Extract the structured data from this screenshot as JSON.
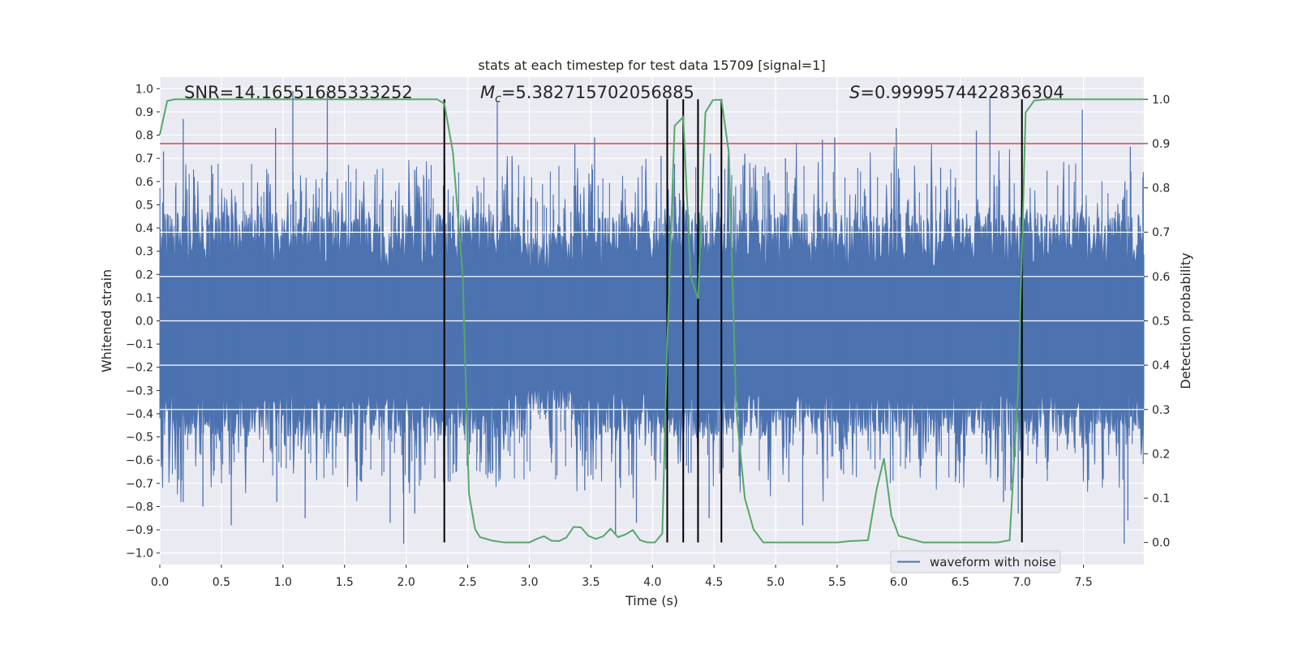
{
  "chart_data": {
    "type": "line",
    "title": "stats at each timestep for test data 15709 [signal=1]",
    "xlabel": "Time (s)",
    "ylabel": "Whitened strain",
    "ylabel_right": "Detection probability",
    "xlim": [
      0,
      7.99
    ],
    "ylim": [
      -1.05,
      1.05
    ],
    "ylim_right": [
      -0.05,
      1.05
    ],
    "x_ticks": [
      0.0,
      0.5,
      1.0,
      1.5,
      2.0,
      2.5,
      3.0,
      3.5,
      4.0,
      4.5,
      5.0,
      5.5,
      6.0,
      6.5,
      7.0,
      7.5
    ],
    "x_tick_labels": [
      "0.0",
      "0.5",
      "1.0",
      "1.5",
      "2.0",
      "2.5",
      "3.0",
      "3.5",
      "4.0",
      "4.5",
      "5.0",
      "5.5",
      "6.0",
      "6.5",
      "7.0",
      "7.5"
    ],
    "y_ticks": [
      -1.0,
      -0.9,
      -0.8,
      -0.7,
      -0.6,
      -0.5,
      -0.4,
      -0.3,
      -0.2,
      -0.1,
      0.0,
      0.1,
      0.2,
      0.3,
      0.4,
      0.5,
      0.6,
      0.7,
      0.8,
      0.9,
      1.0
    ],
    "y_tick_labels": [
      "−1.0",
      "−0.9",
      "−0.8",
      "−0.7",
      "−0.6",
      "−0.5",
      "−0.4",
      "−0.3",
      "−0.2",
      "−0.1",
      "0.0",
      "0.1",
      "0.2",
      "0.3",
      "0.4",
      "0.5",
      "0.6",
      "0.7",
      "0.8",
      "0.9",
      "1.0"
    ],
    "y2_ticks": [
      0.0,
      0.1,
      0.2,
      0.3,
      0.4,
      0.5,
      0.6,
      0.7,
      0.8,
      0.9,
      1.0
    ],
    "y2_tick_labels": [
      "0.0",
      "0.1",
      "0.2",
      "0.3",
      "0.4",
      "0.5",
      "0.6",
      "0.7",
      "0.8",
      "0.9",
      "1.0"
    ],
    "annotations": {
      "snr": "SNR=14.16551685333252",
      "mc_symbol": "M",
      "mc_sub": "c",
      "mc_value": "=5.382715702056885",
      "s_symbol": "S",
      "s_value": "=0.9999574422836304"
    },
    "threshold": {
      "value": 0.9,
      "axis": "right",
      "color": "#c44e52"
    },
    "vertical_lines": {
      "x": [
        2.31,
        4.12,
        4.25,
        4.37,
        4.56,
        7.0
      ],
      "y_range_right": [
        0.0,
        1.0
      ],
      "color": "#000000"
    },
    "waveform": {
      "name": "waveform with noise",
      "color": "#4c72b0",
      "description_bounds": {
        "typical_upper": 0.45,
        "typical_lower": -0.35
      },
      "spikes": [
        [
          0.03,
          0.73
        ],
        [
          0.06,
          0.46
        ],
        [
          0.19,
          0.87
        ],
        [
          0.28,
          0.62
        ],
        [
          0.42,
          0.67
        ],
        [
          0.94,
          0.83
        ],
        [
          1.08,
          0.99
        ],
        [
          1.36,
          0.99
        ],
        [
          1.88,
          0.52
        ],
        [
          2.07,
          0.65
        ],
        [
          2.74,
          0.94
        ],
        [
          2.86,
          0.71
        ],
        [
          3.37,
          0.76
        ],
        [
          3.53,
          0.79
        ],
        [
          4.07,
          0.71
        ],
        [
          4.47,
          0.72
        ],
        [
          4.75,
          0.72
        ],
        [
          5.08,
          0.7
        ],
        [
          5.38,
          0.78
        ],
        [
          5.48,
          0.79
        ],
        [
          5.98,
          0.83
        ],
        [
          6.34,
          0.66
        ],
        [
          6.63,
          0.82
        ],
        [
          6.74,
          0.96
        ],
        [
          7.49,
          0.91
        ],
        [
          7.88,
          0.75
        ],
        [
          0.19,
          -0.78
        ],
        [
          0.35,
          -0.8
        ],
        [
          0.58,
          -0.88
        ],
        [
          0.95,
          -0.78
        ],
        [
          1.18,
          -0.85
        ],
        [
          1.87,
          -0.87
        ],
        [
          1.98,
          -0.96
        ],
        [
          2.07,
          -0.83
        ],
        [
          3.7,
          -0.92
        ],
        [
          3.87,
          -0.87
        ],
        [
          5.22,
          -0.88
        ],
        [
          6.85,
          -0.78
        ],
        [
          6.97,
          -0.83
        ],
        [
          7.83,
          -0.96
        ],
        [
          7.86,
          -0.86
        ],
        [
          4.46,
          -0.85
        ],
        [
          6.91,
          -0.73
        ],
        [
          3.45,
          -0.73
        ]
      ]
    },
    "series": [
      {
        "name": "detection probability",
        "axis": "right",
        "color": "#55a868",
        "x": [
          0.0,
          0.06,
          0.12,
          0.5,
          1.0,
          1.5,
          2.0,
          2.15,
          2.25,
          2.31,
          2.38,
          2.46,
          2.51,
          2.56,
          2.6,
          2.7,
          2.8,
          3.0,
          3.06,
          3.12,
          3.18,
          3.24,
          3.3,
          3.36,
          3.42,
          3.48,
          3.54,
          3.6,
          3.66,
          3.72,
          3.78,
          3.84,
          3.9,
          3.96,
          4.02,
          4.08,
          4.12,
          4.18,
          4.25,
          4.31,
          4.37,
          4.43,
          4.49,
          4.56,
          4.62,
          4.68,
          4.75,
          4.82,
          4.9,
          5.0,
          5.5,
          5.6,
          5.75,
          5.82,
          5.88,
          5.94,
          6.0,
          6.2,
          6.5,
          6.8,
          6.9,
          6.97,
          7.03,
          7.1,
          7.2,
          7.5,
          7.99
        ],
        "values": [
          0.92,
          0.996,
          1.0,
          1.0,
          1.0,
          1.0,
          1.0,
          1.0,
          1.0,
          0.99,
          0.88,
          0.6,
          0.11,
          0.03,
          0.012,
          0.004,
          0.0,
          0.0,
          0.008,
          0.014,
          0.004,
          0.003,
          0.011,
          0.035,
          0.034,
          0.015,
          0.008,
          0.014,
          0.031,
          0.012,
          0.018,
          0.028,
          0.005,
          0.0,
          0.0,
          0.02,
          0.45,
          0.94,
          0.96,
          0.6,
          0.55,
          0.97,
          0.998,
          0.999,
          0.88,
          0.3,
          0.1,
          0.03,
          0.0,
          0.0,
          0.0,
          0.003,
          0.005,
          0.12,
          0.19,
          0.06,
          0.015,
          0.0,
          0.0,
          0.0,
          0.005,
          0.35,
          0.97,
          0.997,
          1.0,
          1.0,
          1.0
        ]
      }
    ],
    "legend": {
      "label": "waveform with noise",
      "placement": "lower-right"
    }
  }
}
